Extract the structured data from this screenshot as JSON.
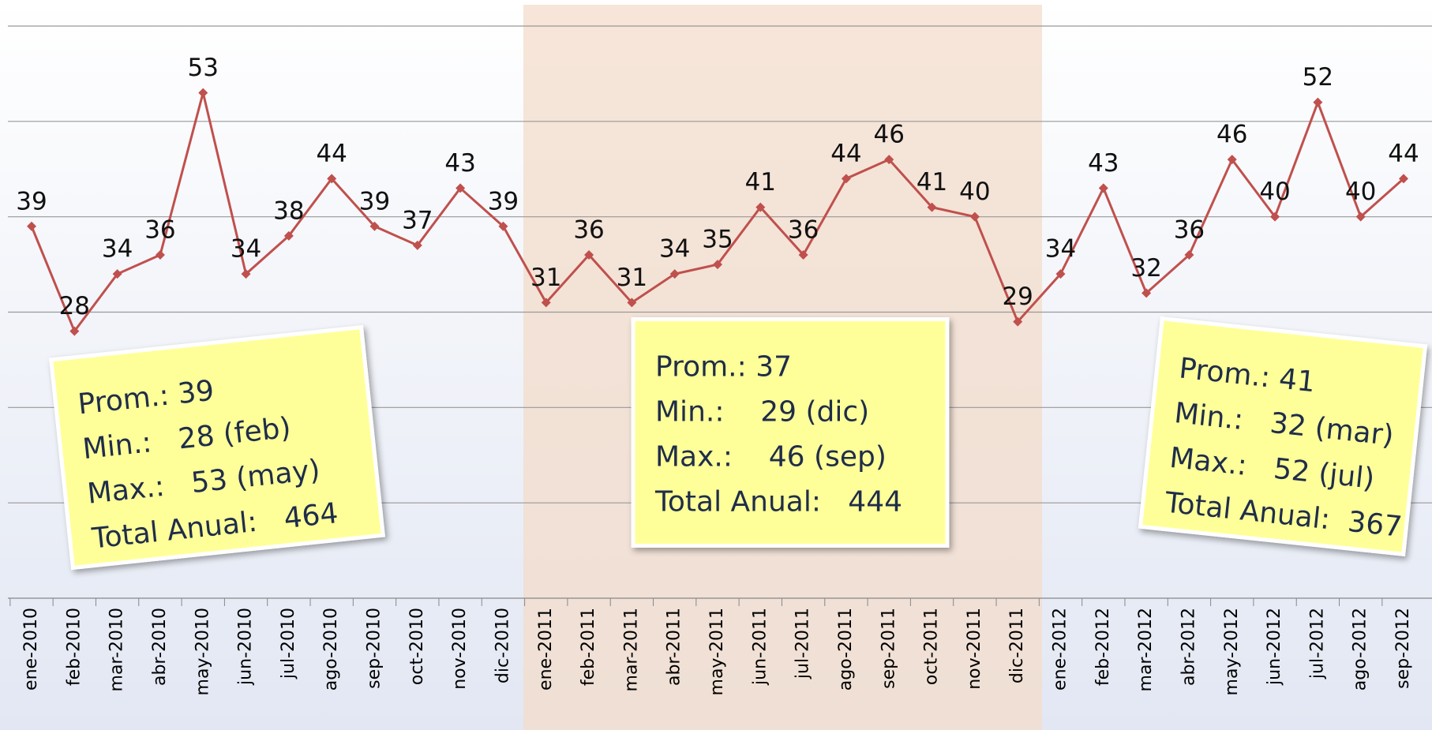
{
  "chart_data": {
    "type": "line",
    "categories": [
      "ene-2010",
      "feb-2010",
      "mar-2010",
      "abr-2010",
      "may-2010",
      "jun-2010",
      "jul-2010",
      "ago-2010",
      "sep-2010",
      "oct-2010",
      "nov-2010",
      "dic-2010",
      "ene-2011",
      "feb-2011",
      "mar-2011",
      "abr-2011",
      "may-2011",
      "jun-2011",
      "jul-2011",
      "ago-2011",
      "sep-2011",
      "oct-2011",
      "nov-2011",
      "dic-2011",
      "ene-2012",
      "feb-2012",
      "mar-2012",
      "abr-2012",
      "may-2012",
      "jun-2012",
      "jul-2012",
      "ago-2012",
      "sep-2012"
    ],
    "series": [
      {
        "color": "#c0504d",
        "values": [
          39,
          28,
          34,
          36,
          53,
          34,
          38,
          44,
          39,
          37,
          43,
          39,
          31,
          36,
          31,
          34,
          35,
          41,
          36,
          44,
          46,
          41,
          40,
          29,
          34,
          43,
          32,
          36,
          46,
          40,
          52,
          40,
          44
        ]
      }
    ],
    "ylim": [
      0,
      60
    ],
    "yticks": [
      0,
      10,
      20,
      30,
      40,
      50,
      60
    ],
    "grid": true,
    "annotations": [
      {
        "lines": [
          "Prom.: 39",
          "Min.:   28 (feb)",
          "Max.:   53 (may)",
          "Total Anual:   464"
        ]
      },
      {
        "lines": [
          "Prom.: 37",
          "Min.:    29 (dic)",
          "Max.:    46 (sep)",
          "Total Anual:   444"
        ]
      },
      {
        "lines": [
          "Prom.: 41",
          "Min.:   32 (mar)",
          "Max.:   52 (jul)",
          "Total Anual:  367"
        ]
      }
    ]
  }
}
